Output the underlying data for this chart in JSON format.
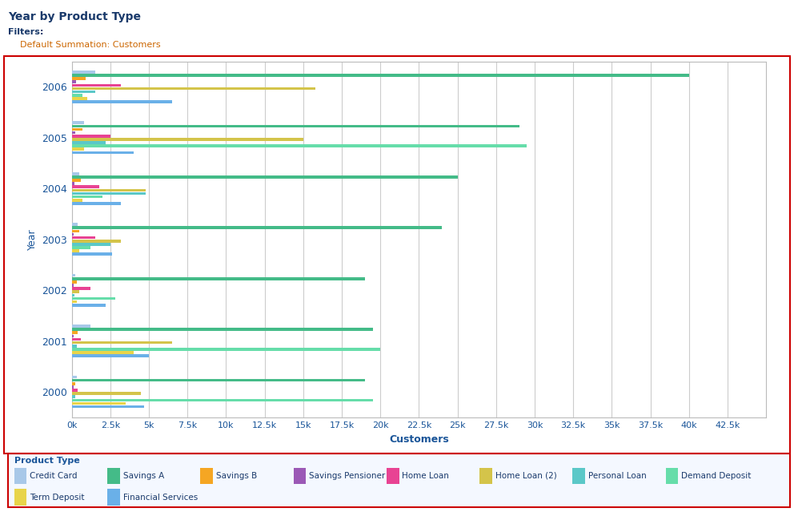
{
  "title": "Year by Product Type",
  "filters_label": "Filters:",
  "filters_value": "Default Summation: Customers",
  "xlabel": "Customers",
  "ylabel": "Year",
  "years": [
    2000,
    2001,
    2002,
    2003,
    2004,
    2005,
    2006
  ],
  "product_types": [
    "Credit Card",
    "Savings A",
    "Savings B",
    "Savings Pensioner",
    "Home Loan",
    "Home Loan (2)",
    "Personal Loan",
    "Demand Deposit",
    "Term Deposit",
    "Financial Services"
  ],
  "colors": [
    "#a8c8e8",
    "#44bb88",
    "#f5a623",
    "#9b59b6",
    "#e84393",
    "#d4c44a",
    "#5bc8c8",
    "#66ddaa",
    "#e8d44a",
    "#6ab0e8"
  ],
  "data": {
    "2000": [
      300,
      19000,
      200,
      100,
      400,
      4500,
      200,
      19500,
      3500,
      4700
    ],
    "2001": [
      1200,
      19500,
      400,
      120,
      600,
      6500,
      300,
      20000,
      4000,
      5000
    ],
    "2002": [
      200,
      19000,
      300,
      100,
      1200,
      500,
      150,
      2800,
      300,
      2200
    ],
    "2003": [
      400,
      24000,
      500,
      120,
      1500,
      3200,
      2500,
      1200,
      500,
      2600
    ],
    "2004": [
      500,
      25000,
      600,
      150,
      1800,
      4800,
      4800,
      2000,
      700,
      3200
    ],
    "2005": [
      800,
      29000,
      700,
      200,
      2500,
      15000,
      2200,
      29500,
      800,
      4000
    ],
    "2006": [
      1500,
      40000,
      900,
      250,
      3200,
      15800,
      1500,
      700,
      1000,
      6500
    ]
  },
  "xlim": [
    0,
    45000
  ],
  "xticks": [
    0,
    2500,
    5000,
    7500,
    10000,
    12500,
    15000,
    17500,
    20000,
    22500,
    25000,
    27500,
    30000,
    32500,
    35000,
    37500,
    40000,
    42500
  ],
  "xtick_labels": [
    "0k",
    "2.5k",
    "5k",
    "7.5k",
    "10k",
    "12.5k",
    "15k",
    "17.5k",
    "20k",
    "22.5k",
    "25k",
    "27.5k",
    "30k",
    "32.5k",
    "35k",
    "37.5k",
    "40k",
    "42.5k"
  ],
  "background_color": "#ffffff",
  "plot_bg_color": "#ffffff",
  "grid_color": "#cccccc",
  "bar_height": 0.065,
  "title_color": "#1a3a6b",
  "axis_color": "#1a5599",
  "legend_border_color": "#1a5599",
  "red_box_color": "#cc0000"
}
